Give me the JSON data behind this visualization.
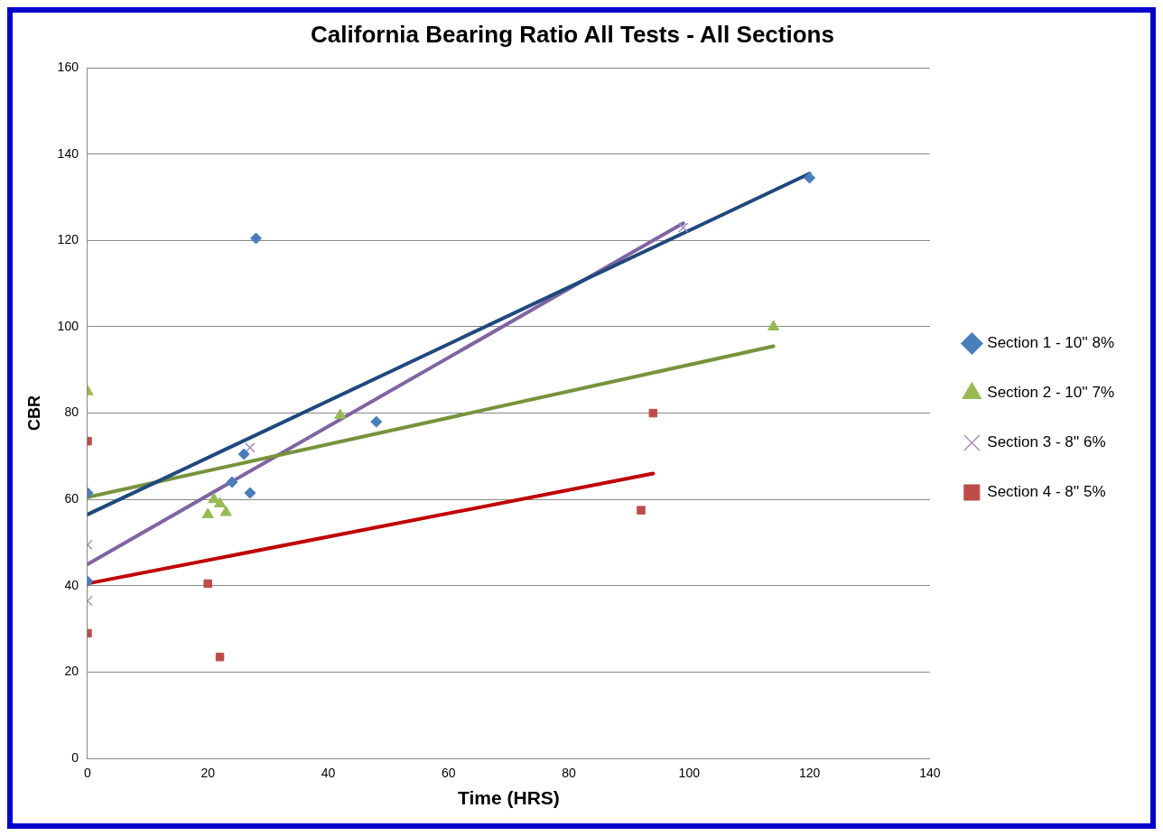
{
  "chart_data": {
    "type": "scatter",
    "title": "California Bearing Ratio All Tests - All Sections",
    "xlabel": "Time (HRS)",
    "ylabel": "CBR",
    "xlim": [
      0,
      140
    ],
    "xticks": [
      0,
      20,
      40,
      60,
      80,
      100,
      120,
      140
    ],
    "ylim": [
      0,
      160
    ],
    "yticks": [
      0,
      20,
      40,
      60,
      80,
      100,
      120,
      140,
      160
    ],
    "grid": "y",
    "legend": "right",
    "series": [
      {
        "name": "Section 1 - 10'' 8%",
        "color": "#4a7ebb",
        "marker": "diamond",
        "x": [
          0,
          0,
          24,
          26,
          27,
          28,
          48,
          120
        ],
        "values": [
          61.5,
          41,
          64,
          70.5,
          61.5,
          120.5,
          78,
          134.5
        ]
      },
      {
        "name": "Section 2 - 10'' 7%",
        "color": "#98b954",
        "marker": "triangle",
        "x": [
          0,
          20,
          21,
          22,
          23,
          42,
          114
        ],
        "values": [
          85,
          56.5,
          60,
          59,
          57,
          79.5,
          100
        ]
      },
      {
        "name": "Section 3 - 8'' 6%",
        "color": "#a68cc4",
        "marker": "cross",
        "x": [
          0,
          0,
          27,
          99
        ],
        "values": [
          49.5,
          36.5,
          72,
          123
        ]
      },
      {
        "name": "Section 4 - 8'' 5%",
        "color": "#be4b48",
        "marker": "square",
        "x": [
          0,
          0,
          20,
          22,
          92,
          94
        ],
        "values": [
          73.5,
          29,
          40.5,
          23.5,
          57.5,
          80
        ]
      },
      {
        "type": "line",
        "color": "#1f497d",
        "marker": "none",
        "x": [
          0,
          120
        ],
        "values": [
          56.5,
          135.5
        ]
      },
      {
        "type": "line",
        "color": "#77933c",
        "marker": "none",
        "x": [
          0,
          114
        ],
        "values": [
          60.5,
          95.5
        ]
      },
      {
        "type": "line",
        "color": "#8064a2",
        "marker": "none",
        "x": [
          0,
          99
        ],
        "values": [
          45,
          124
        ]
      },
      {
        "type": "line",
        "color": "#c00000",
        "marker": "none",
        "x": [
          0,
          94
        ],
        "values": [
          40.5,
          66
        ]
      }
    ]
  }
}
